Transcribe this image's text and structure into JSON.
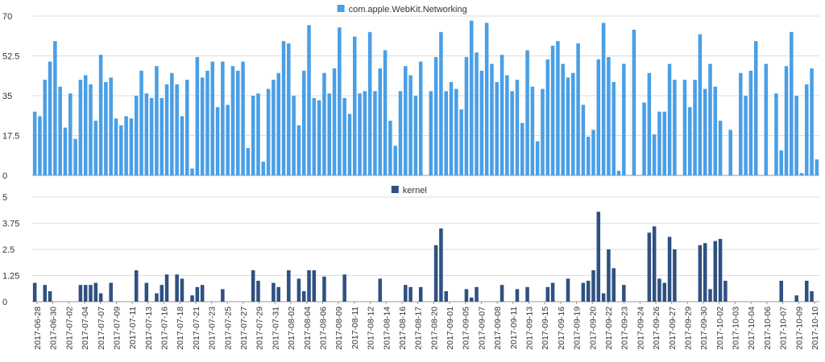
{
  "chart_data": [
    {
      "type": "bar",
      "legend_position": "top-center",
      "grid": true,
      "ylim": [
        0,
        70
      ],
      "yticks": [
        "0",
        "17.5",
        "35",
        "52.5",
        "70"
      ],
      "color": "#4a9fe6",
      "series": [
        {
          "name": "com.apple.WebKit.Networking",
          "values": [
            28,
            26,
            42,
            50,
            59,
            39,
            21,
            36,
            16,
            42,
            44,
            40,
            24,
            53,
            41,
            43,
            25,
            22,
            26,
            25,
            35,
            46,
            36,
            34,
            48,
            34,
            40,
            45,
            40,
            26,
            42,
            3,
            52,
            43,
            46,
            50,
            30,
            50,
            31,
            48,
            46,
            50,
            12,
            35,
            36,
            6,
            38,
            42,
            45,
            59,
            58,
            35,
            22,
            46,
            66,
            34,
            33,
            45,
            36,
            47,
            65,
            34,
            27,
            61,
            36,
            37,
            63,
            37,
            47,
            55,
            24,
            13,
            37,
            48,
            44,
            35,
            50,
            0,
            37,
            52,
            63,
            37,
            41,
            38,
            29,
            52,
            68,
            54,
            46,
            67,
            49,
            41,
            53,
            44,
            37,
            42,
            23,
            55,
            39,
            15,
            38,
            51,
            57,
            59,
            49,
            43,
            45,
            58,
            31,
            17,
            20,
            51,
            67,
            52,
            41,
            2,
            49,
            0,
            64,
            0,
            32,
            45,
            18,
            28,
            28,
            49,
            42,
            0,
            42,
            30,
            42,
            62,
            38,
            49,
            39,
            24,
            0,
            20,
            0,
            45,
            35,
            46,
            59,
            0,
            49,
            0,
            36,
            11,
            48,
            63,
            35,
            1,
            40,
            47,
            7
          ]
        }
      ]
    },
    {
      "type": "bar",
      "legend_position": "top-center",
      "grid": true,
      "ylim": [
        0,
        5
      ],
      "yticks": [
        "0",
        "1.25",
        "2.5",
        "3.75",
        "5"
      ],
      "color": "#2f5182",
      "x_tick_labels": [
        "2017-06-28",
        "2017-06-30",
        "2017-07-02",
        "2017-07-04",
        "2017-07-07",
        "2017-07-09",
        "2017-07-11",
        "2017-07-13",
        "2017-07-16",
        "2017-07-18",
        "2017-07-21",
        "2017-07-23",
        "2017-07-25",
        "2017-07-27",
        "2017-07-29",
        "2017-07-31",
        "2017-08-02",
        "2017-08-04",
        "2017-08-06",
        "2017-08-09",
        "2017-08-11",
        "2017-08-12",
        "2017-08-14",
        "2017-08-16",
        "2017-08-17",
        "2017-08-20",
        "2017-09-01",
        "2017-09-05",
        "2017-09-07",
        "2017-09-08",
        "2017-09-11",
        "2017-09-13",
        "2017-09-15",
        "2017-09-16",
        "2017-09-19",
        "2017-09-20",
        "2017-09-22",
        "2017-09-23",
        "2017-09-24",
        "2017-09-26",
        "2017-09-27",
        "2017-09-29",
        "2017-09-30",
        "2017-10-02",
        "2017-10-03",
        "2017-10-04",
        "2017-10-06",
        "2017-10-07",
        "2017-10-09",
        "2017-10-10"
      ],
      "series": [
        {
          "name": "kernel",
          "values": [
            0.9,
            0,
            0.8,
            0.5,
            0,
            0,
            0,
            0,
            0,
            0.8,
            0.8,
            0.8,
            0.9,
            0.4,
            0,
            0.9,
            0,
            0,
            0,
            0,
            1.5,
            0,
            0.9,
            0,
            0.4,
            0.8,
            1.3,
            0,
            1.3,
            1.1,
            0,
            0.3,
            0.7,
            0.8,
            0,
            0,
            0,
            0.6,
            0,
            0,
            0,
            0,
            0,
            1.5,
            1.0,
            0,
            0,
            0.9,
            0.7,
            0,
            1.5,
            0,
            1.1,
            0.5,
            1.5,
            1.5,
            0,
            1.2,
            0,
            0,
            0,
            1.3,
            0,
            0,
            0,
            0,
            0,
            0,
            1.1,
            0,
            0,
            0,
            0,
            0.8,
            0.7,
            0,
            0.7,
            0,
            0,
            2.7,
            3.5,
            0.5,
            0,
            0,
            0,
            0.6,
            0.2,
            0.7,
            0,
            0,
            0,
            0,
            0.8,
            0,
            0,
            0.6,
            0,
            0.7,
            0,
            0,
            0,
            0.7,
            0.9,
            0,
            0,
            1.1,
            0,
            0,
            0.9,
            1.0,
            1.5,
            4.3,
            0.4,
            2.5,
            1.6,
            0,
            0.8,
            0,
            0,
            0,
            0,
            3.3,
            3.6,
            1.1,
            0.9,
            3.1,
            2.5,
            0,
            0,
            0,
            0,
            2.7,
            2.8,
            0.6,
            2.9,
            3.0,
            1.0,
            0,
            0,
            0,
            0,
            0,
            0,
            0,
            0,
            0,
            0,
            1.0,
            0,
            0,
            0.3,
            0,
            1.0,
            0.5,
            0
          ]
        }
      ]
    }
  ]
}
